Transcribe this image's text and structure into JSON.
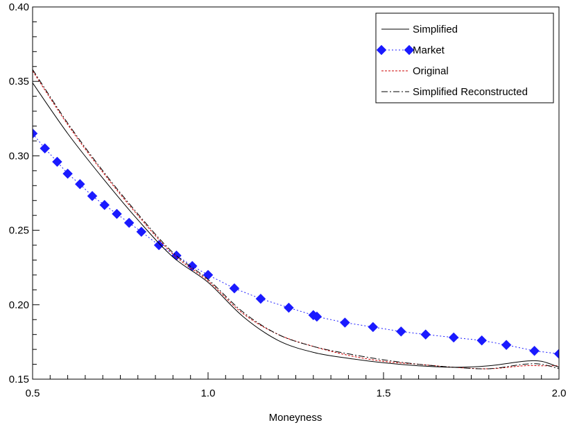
{
  "chart_data": {
    "type": "line",
    "title": "",
    "xlabel": "Moneyness",
    "ylabel": "",
    "xlim": [
      0.5,
      2.0
    ],
    "ylim": [
      0.15,
      0.4
    ],
    "x_ticks": [
      0.5,
      1.0,
      1.5,
      2.0
    ],
    "x_tick_labels": [
      "0.5",
      "1.0",
      "1.5",
      "2.0"
    ],
    "y_ticks": [
      0.15,
      0.2,
      0.25,
      0.3,
      0.35,
      0.4
    ],
    "y_tick_labels": [
      "0.15",
      "0.20",
      "0.25",
      "0.30",
      "0.35",
      "0.40"
    ],
    "grid": false,
    "legend_position": "top-right",
    "series": [
      {
        "name": "Simplified",
        "color": "#000000",
        "style": "solid",
        "marker": "none",
        "x": [
          0.5,
          0.6,
          0.7,
          0.8,
          0.9,
          1.0,
          1.1,
          1.2,
          1.3,
          1.4,
          1.5,
          1.6,
          1.7,
          1.8,
          1.9,
          1.95,
          2.0
        ],
        "y": [
          0.349,
          0.315,
          0.285,
          0.257,
          0.232,
          0.215,
          0.192,
          0.176,
          0.168,
          0.164,
          0.161,
          0.159,
          0.158,
          0.159,
          0.162,
          0.162,
          0.158
        ]
      },
      {
        "name": "Market",
        "color": "#1a1aff",
        "style": "dotted",
        "marker": "diamond",
        "x": [
          0.5,
          0.535,
          0.57,
          0.6,
          0.635,
          0.67,
          0.705,
          0.74,
          0.775,
          0.81,
          0.86,
          0.91,
          0.955,
          1.0,
          1.075,
          1.15,
          1.23,
          1.3,
          1.31,
          1.39,
          1.47,
          1.55,
          1.62,
          1.7,
          1.78,
          1.85,
          1.93,
          2.0
        ],
        "y": [
          0.315,
          0.305,
          0.296,
          0.288,
          0.281,
          0.273,
          0.267,
          0.261,
          0.255,
          0.249,
          0.24,
          0.233,
          0.226,
          0.22,
          0.211,
          0.204,
          0.198,
          0.193,
          0.192,
          0.188,
          0.185,
          0.182,
          0.18,
          0.178,
          0.176,
          0.173,
          0.169,
          0.167
        ]
      },
      {
        "name": "Original",
        "color": "#cc0000",
        "style": "dashed-fine",
        "marker": "none",
        "x": [
          0.5,
          0.6,
          0.7,
          0.8,
          0.9,
          1.0,
          1.1,
          1.2,
          1.3,
          1.4,
          1.5,
          1.6,
          1.7,
          1.8,
          1.9,
          1.95,
          2.0
        ],
        "y": [
          0.357,
          0.321,
          0.289,
          0.26,
          0.234,
          0.216,
          0.194,
          0.18,
          0.172,
          0.166,
          0.162,
          0.16,
          0.158,
          0.157,
          0.159,
          0.159,
          0.159
        ]
      },
      {
        "name": "Simplified Reconstructed",
        "color": "#000000",
        "style": "dashdot",
        "marker": "none",
        "x": [
          0.5,
          0.6,
          0.7,
          0.8,
          0.9,
          1.0,
          1.1,
          1.2,
          1.3,
          1.4,
          1.5,
          1.6,
          1.7,
          1.8,
          1.9,
          1.95,
          2.0
        ],
        "y": [
          0.358,
          0.322,
          0.29,
          0.261,
          0.235,
          0.217,
          0.195,
          0.18,
          0.172,
          0.167,
          0.163,
          0.16,
          0.158,
          0.157,
          0.16,
          0.16,
          0.157
        ]
      }
    ]
  }
}
